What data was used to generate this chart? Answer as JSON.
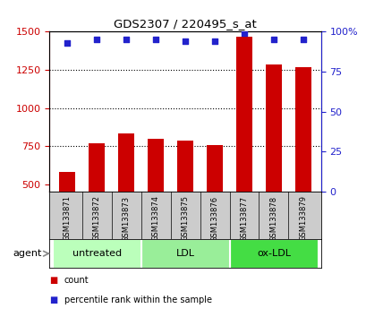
{
  "title": "GDS2307 / 220495_s_at",
  "samples": [
    "GSM133871",
    "GSM133872",
    "GSM133873",
    "GSM133874",
    "GSM133875",
    "GSM133876",
    "GSM133877",
    "GSM133878",
    "GSM133879"
  ],
  "counts": [
    580,
    770,
    830,
    795,
    785,
    755,
    1470,
    1285,
    1265
  ],
  "percentiles": [
    93,
    95,
    95,
    95,
    94,
    94,
    99,
    95,
    95
  ],
  "ylim_left": [
    450,
    1500
  ],
  "ylim_right": [
    0,
    100
  ],
  "yticks_left": [
    500,
    750,
    1000,
    1250,
    1500
  ],
  "yticks_right": [
    0,
    25,
    50,
    75,
    100
  ],
  "bar_color": "#cc0000",
  "dot_color": "#2222cc",
  "groups": [
    {
      "label": "untreated",
      "indices": [
        0,
        1,
        2
      ],
      "color": "#bbffbb"
    },
    {
      "label": "LDL",
      "indices": [
        3,
        4,
        5
      ],
      "color": "#99ee99"
    },
    {
      "label": "ox-LDL",
      "indices": [
        6,
        7,
        8
      ],
      "color": "#44dd44"
    }
  ],
  "xlabel_agent": "agent",
  "legend_count": "count",
  "legend_pct": "percentile rank within the sample",
  "background_color": "#ffffff",
  "tick_label_color_left": "#cc0000",
  "tick_label_color_right": "#2222cc",
  "label_bg_color": "#cccccc",
  "gridline_color": "#000000",
  "gridline_style": "dotted"
}
